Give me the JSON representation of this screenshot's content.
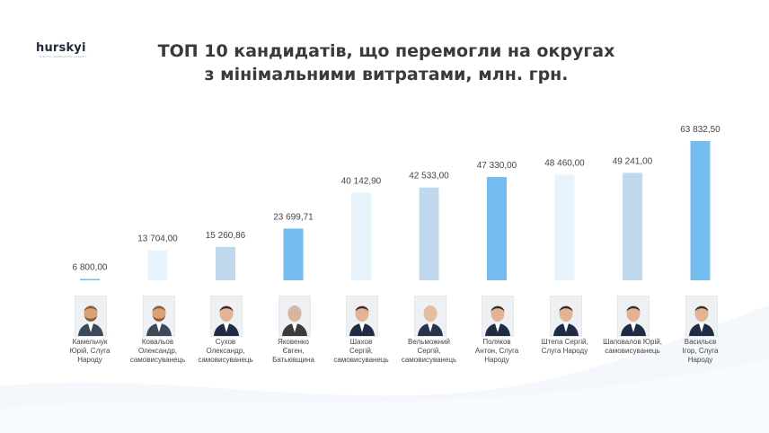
{
  "logo": {
    "text": "hurskyi",
    "subtitle": "DIGITAL MARKETING AGENCY"
  },
  "title": {
    "line1": "ТОП 10 кандидатів, що перемогли на округах",
    "line2": "з мінімальними  витратами, млн. грн."
  },
  "colors": {
    "dark_bar": "#75bcf0",
    "mid_bar": "#c1d9ee",
    "light_bar": "#e7f3fd",
    "text": "#444444"
  },
  "chart_data": {
    "type": "bar",
    "title": "ТОП 10 кандидатів, що перемогли на округах з мінімальними  витратами, млн. грн.",
    "categories": [
      "Камельчук Юрій, Слуга Народу",
      "Ковальов Олександр, самовисуванець",
      "Сухов Олександр, самовисуванець",
      "Яковенко Євген, Батьківщина",
      "Шахов Сергій, самовисуванець",
      "Вельможний Сергій, самовисуванець",
      "Поляков Антон, Слуга Народу",
      "Штепа Сергій, Слуга Народу",
      "Шаповалов Юрій, самовисуванець",
      "Васильєв Ігор, Слуга Народу"
    ],
    "values": [
      6800,
      13704,
      15260.86,
      23699.71,
      40142.9,
      42533,
      47330,
      48460,
      49241,
      63832.5
    ],
    "value_labels": [
      "6 800,00",
      "13 704,00",
      "15 260,86",
      "23 699,71",
      "40 142,90",
      "42 533,00",
      "47 330,00",
      "48 460,00",
      "49 241,00",
      "63 832,50"
    ],
    "bar_colors": [
      "#75bcf0",
      "#e7f3fd",
      "#c1d9ee",
      "#75bcf0",
      "#e7f3fd",
      "#c1d9ee",
      "#75bcf0",
      "#e7f3fd",
      "#c1d9ee",
      "#75bcf0"
    ],
    "ylim": [
      0,
      63832.5
    ],
    "grid": false,
    "legend": "none"
  },
  "candidates": [
    {
      "name_lines": [
        "Камельчук",
        "Юрій, Слуга",
        "Народу"
      ],
      "photo": "portrait-bearded"
    },
    {
      "name_lines": [
        "Ковальов",
        "Олександр,",
        "самовисуванець"
      ],
      "photo": "portrait-bearded"
    },
    {
      "name_lines": [
        "Сухов",
        "Олександр,",
        "самовисуванець"
      ],
      "photo": "portrait-suit"
    },
    {
      "name_lines": [
        "Яковенко",
        "Євген,",
        "Батьківщина"
      ],
      "photo": "portrait-suit-grey"
    },
    {
      "name_lines": [
        "Шахов",
        "Сергій,",
        "самовисуванець"
      ],
      "photo": "portrait-suit"
    },
    {
      "name_lines": [
        "Вельможний",
        "Сергій,",
        "самовисуванець"
      ],
      "photo": "portrait-bald"
    },
    {
      "name_lines": [
        "Поляков",
        "Антон, Слуга",
        "Народу"
      ],
      "photo": "portrait-suit"
    },
    {
      "name_lines": [
        "Штепа Сергій,",
        "Слуга Народу"
      ],
      "photo": "portrait-suit"
    },
    {
      "name_lines": [
        "Шаповалов Юрій,",
        "самовисуванець"
      ],
      "photo": "portrait-suit"
    },
    {
      "name_lines": [
        "Васильєв",
        "Ігор, Слуга",
        "Народу"
      ],
      "photo": "portrait-suit"
    }
  ]
}
